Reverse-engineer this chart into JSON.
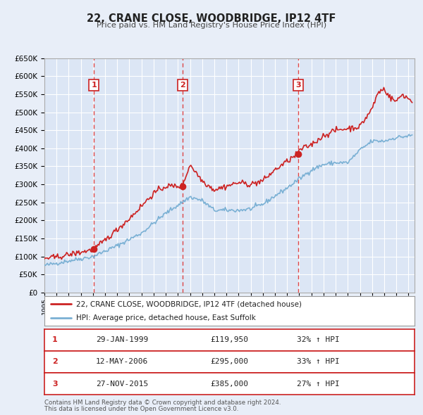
{
  "title": "22, CRANE CLOSE, WOODBRIDGE, IP12 4TF",
  "subtitle": "Price paid vs. HM Land Registry's House Price Index (HPI)",
  "bg_color": "#e8eef8",
  "plot_bg_color": "#dce6f5",
  "grid_color": "#ffffff",
  "hpi_color": "#7ab0d4",
  "price_color": "#cc2222",
  "marker_color": "#cc2222",
  "vline_color": "#dd3333",
  "transactions": [
    {
      "label": "1",
      "date_num": 1999.08,
      "price": 119950,
      "text": "29-JAN-1999",
      "price_text": "£119,950",
      "pct": "32%"
    },
    {
      "label": "2",
      "date_num": 2006.36,
      "price": 295000,
      "text": "12-MAY-2006",
      "price_text": "£295,000",
      "pct": "33%"
    },
    {
      "label": "3",
      "date_num": 2015.9,
      "price": 385000,
      "text": "27-NOV-2015",
      "price_text": "£385,000",
      "pct": "27%"
    }
  ],
  "legend_line1": "22, CRANE CLOSE, WOODBRIDGE, IP12 4TF (detached house)",
  "legend_line2": "HPI: Average price, detached house, East Suffolk",
  "footer1": "Contains HM Land Registry data © Crown copyright and database right 2024.",
  "footer2": "This data is licensed under the Open Government Licence v3.0.",
  "xmin": 1995.0,
  "xmax": 2025.5,
  "ymin": 0,
  "ymax": 650000,
  "hpi_anchors_x": [
    1995,
    1997,
    1999,
    2001,
    2003,
    2005,
    2007,
    2008,
    2009,
    2010,
    2011,
    2012,
    2013,
    2014,
    2015,
    2016,
    2017,
    2018,
    2019,
    2020,
    2021,
    2022,
    2023,
    2024,
    2025.3
  ],
  "hpi_anchors_y": [
    75000,
    88000,
    100000,
    130000,
    165000,
    220000,
    265000,
    255000,
    228000,
    228000,
    228000,
    232000,
    245000,
    268000,
    290000,
    315000,
    340000,
    355000,
    360000,
    360000,
    395000,
    420000,
    420000,
    430000,
    435000
  ],
  "price_anchors_x": [
    1995,
    1996,
    1997,
    1998,
    1999.08,
    2000,
    2001,
    2002,
    2003,
    2004,
    2005,
    2006.36,
    2007,
    2008,
    2009,
    2010,
    2011,
    2012,
    2013,
    2014,
    2015.9,
    2016,
    2017,
    2018,
    2019,
    2020,
    2021,
    2022,
    2022.5,
    2023,
    2023.5,
    2024,
    2024.5,
    2025.3
  ],
  "price_anchors_y": [
    95000,
    98000,
    105000,
    112000,
    119950,
    145000,
    175000,
    205000,
    240000,
    275000,
    295000,
    295000,
    355000,
    310000,
    285000,
    295000,
    305000,
    300000,
    310000,
    340000,
    385000,
    395000,
    410000,
    435000,
    450000,
    455000,
    460000,
    510000,
    555000,
    565000,
    540000,
    530000,
    550000,
    530000
  ]
}
